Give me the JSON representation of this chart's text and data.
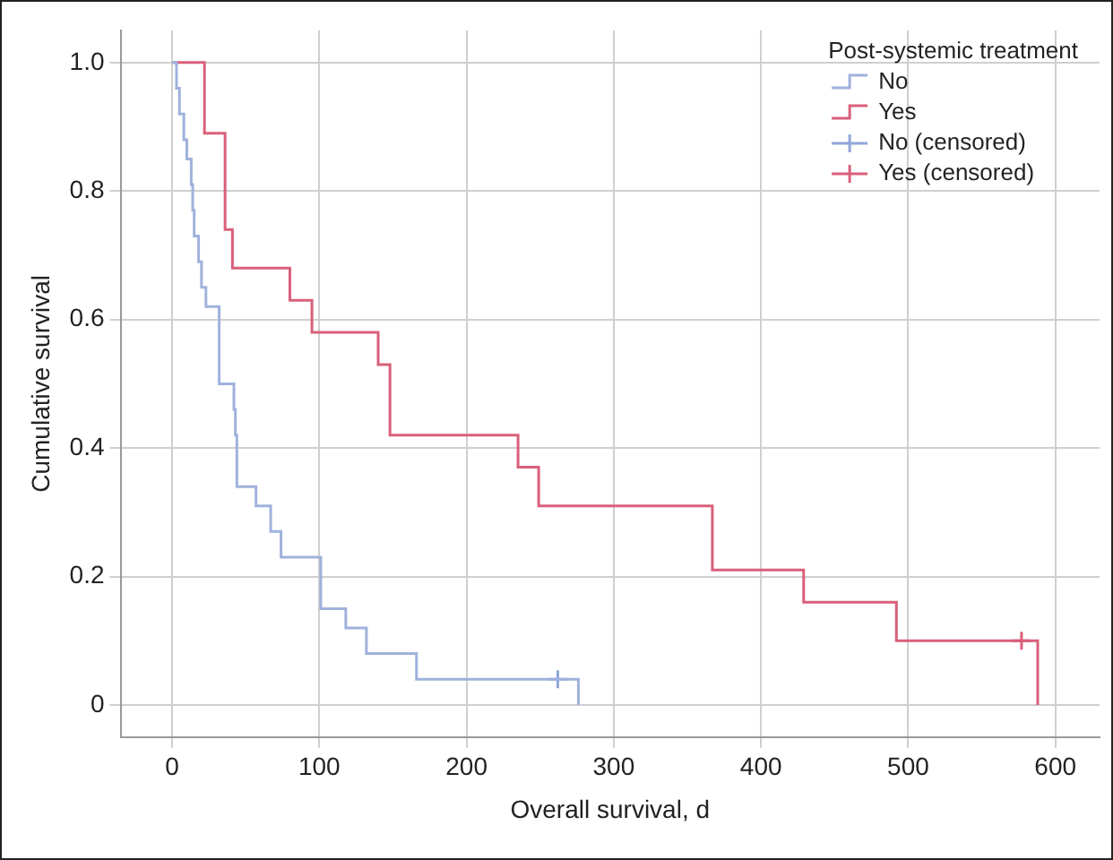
{
  "chart_data": {
    "type": "step",
    "xlabel": "Overall survival, d",
    "ylabel": "Cumulative survival",
    "legend_title": "Post-systemic treatment",
    "legend": "top right",
    "grid": true,
    "marker": "none",
    "xlim": [
      -35,
      630
    ],
    "xticks": [
      0,
      100,
      200,
      300,
      400,
      500,
      600
    ],
    "ylim": [
      -0.05,
      1.05
    ],
    "yticks": [
      0,
      {
        "value": 0.2,
        "label": "0.2"
      },
      {
        "value": 0.4,
        "label": "0.4"
      },
      {
        "value": 0.6,
        "label": "0.6"
      },
      {
        "value": 0.8,
        "label": "0.8"
      },
      {
        "value": 1,
        "label": "1.0"
      }
    ],
    "series": [
      {
        "name": "No",
        "type": "step",
        "color": "#9fb2dc",
        "x": [
          0,
          3,
          5,
          8,
          10,
          13,
          14,
          15,
          18,
          20,
          23,
          32,
          42,
          43,
          44,
          57,
          67,
          74,
          101,
          118,
          132,
          166,
          276
        ],
        "values": [
          1,
          0.96,
          0.92,
          0.88,
          0.85,
          0.81,
          0.77,
          0.73,
          0.69,
          0.65,
          0.62,
          0.5,
          0.46,
          0.42,
          0.34,
          0.31,
          0.27,
          0.23,
          0.15,
          0.12,
          0.08,
          0.04,
          0
        ]
      },
      {
        "name": "Yes",
        "type": "step",
        "color": "#d9607a",
        "x": [
          0,
          22,
          36,
          41,
          80,
          95,
          140,
          148,
          235,
          249,
          367,
          429,
          492,
          588
        ],
        "values": [
          1,
          0.89,
          0.74,
          0.68,
          0.63,
          0.58,
          0.53,
          0.42,
          0.37,
          0.31,
          0.21,
          0.16,
          0.1,
          0
        ]
      },
      {
        "name": "No (censored)",
        "type": "scatter",
        "marker": "cross",
        "color": "#8fa6d8",
        "x": [
          262
        ],
        "values": [
          0.04
        ]
      },
      {
        "name": "Yes (censored)",
        "type": "scatter",
        "marker": "cross",
        "color": "#d9607a",
        "x": [
          577
        ],
        "values": [
          0.1
        ]
      }
    ]
  }
}
